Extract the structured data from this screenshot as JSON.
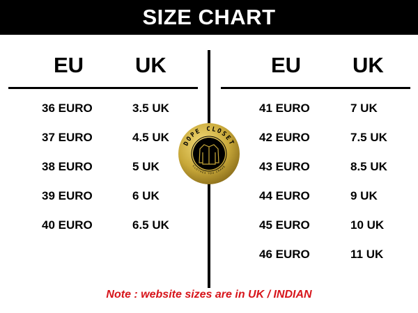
{
  "title": "SIZE CHART",
  "columns": {
    "left": [
      "EU",
      "UK"
    ],
    "right": [
      "EU",
      "UK"
    ]
  },
  "left_rows": [
    [
      "36 EURO",
      "3.5 UK"
    ],
    [
      "37 EURO",
      "4.5 UK"
    ],
    [
      "38 EURO",
      "5 UK"
    ],
    [
      "39 EURO",
      "6 UK"
    ],
    [
      "40 EURO",
      "6.5 UK"
    ]
  ],
  "right_rows": [
    [
      "41 EURO",
      "7 UK"
    ],
    [
      "42 EURO",
      "7.5 UK"
    ],
    [
      "43 EURO",
      "8.5 UK"
    ],
    [
      "44 EURO",
      "9 UK"
    ],
    [
      "45 EURO",
      "10 UK"
    ],
    [
      "46 EURO",
      "11 UK"
    ]
  ],
  "logo": {
    "name": "DOPE CLOSET",
    "tagline": "CLOTHES YOU CRAVE",
    "icon": "jacket-icon"
  },
  "note": "Note : website sizes are in UK / INDIAN",
  "colors": {
    "header_bg": "#000000",
    "note": "#d7141a",
    "logo_gold": "#c9a93a"
  }
}
